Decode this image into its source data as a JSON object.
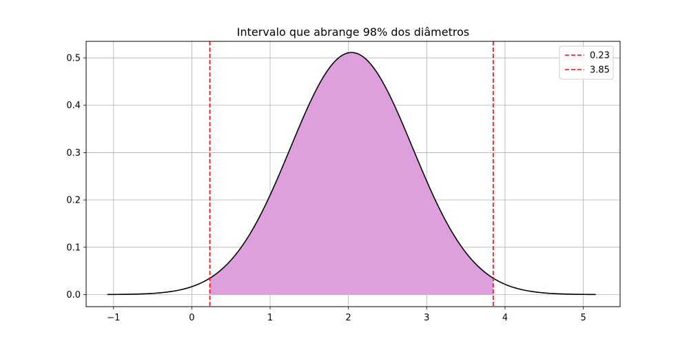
{
  "chart_data": {
    "type": "line",
    "title": "Intervalo que abrange 98% dos diâmetros",
    "xlabel": "",
    "ylabel": "",
    "xlim": [
      -1.35,
      5.47
    ],
    "ylim": [
      -0.0255,
      0.535
    ],
    "x_ticks": [
      -1,
      0,
      1,
      2,
      3,
      4,
      5
    ],
    "x_tick_labels": [
      "−1",
      "0",
      "1",
      "2",
      "3",
      "4",
      "5"
    ],
    "y_ticks": [
      0.0,
      0.1,
      0.2,
      0.3,
      0.4,
      0.5
    ],
    "y_tick_labels": [
      "0.0",
      "0.1",
      "0.2",
      "0.3",
      "0.4",
      "0.5"
    ],
    "grid": true,
    "legend_position": "top-right",
    "curve": {
      "kind": "normal-pdf",
      "mean": 2.04,
      "std": 0.78,
      "x_range": [
        -1.08,
        5.16
      ],
      "color": "#000000"
    },
    "shaded_region": {
      "x_range": [
        0.23,
        3.85
      ],
      "color": "#dda0dd"
    },
    "series": [
      {
        "name": "0.23",
        "x": 0.23,
        "style": "dashed",
        "color": "#ff0000"
      },
      {
        "name": "3.85",
        "x": 3.85,
        "style": "dashed",
        "color": "#ff0000"
      }
    ]
  }
}
